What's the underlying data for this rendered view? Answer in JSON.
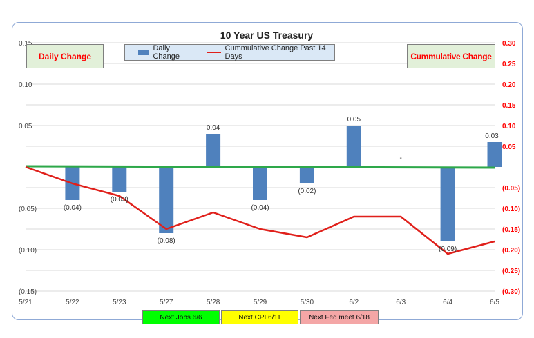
{
  "chart_data": {
    "type": "bar+line",
    "title": "10 Year US Treasury",
    "categories": [
      "5/21",
      "5/22",
      "5/23",
      "5/27",
      "5/28",
      "5/29",
      "5/30",
      "6/2",
      "6/3",
      "6/4",
      "6/5"
    ],
    "series": [
      {
        "name": "Daily Change",
        "type": "bar",
        "axis": "left",
        "color": "#4f81bd",
        "values": [
          0,
          -0.04,
          -0.03,
          -0.08,
          0.04,
          -0.04,
          -0.02,
          0.05,
          0,
          -0.09,
          0.03
        ],
        "labels": [
          "",
          "(0.04)",
          "(0.03)",
          "(0.08)",
          "0.04",
          "(0.04)",
          "(0.02)",
          "0.05",
          "-",
          "(0.09)",
          "0.03"
        ]
      },
      {
        "name": "Cummulative Change Past 14 Days",
        "type": "line",
        "axis": "right",
        "color": "#e0201b",
        "values": [
          0,
          -0.04,
          -0.07,
          -0.15,
          -0.11,
          -0.15,
          -0.17,
          -0.12,
          -0.12,
          -0.21,
          -0.18
        ]
      }
    ],
    "y_left": {
      "ylim": [
        -0.15,
        0.15
      ],
      "ticks": [
        0.15,
        0.1,
        0.05,
        -0.05,
        -0.1,
        -0.15
      ],
      "tick_labels": [
        "0.15",
        "0.10",
        "0.05",
        "(0.05)",
        "(0.10)",
        "(0.15)"
      ]
    },
    "y_right": {
      "ylim": [
        -0.3,
        0.3
      ],
      "color": "#ff0000",
      "ticks": [
        0.3,
        0.25,
        0.2,
        0.15,
        0.1,
        0.05,
        -0.05,
        -0.1,
        -0.15,
        -0.2,
        -0.25,
        -0.3
      ],
      "tick_labels": [
        "0.30",
        "0.25",
        "0.20",
        "0.15",
        "0.10",
        "0.05",
        "(0.05)",
        "(0.10)",
        "(0.15)",
        "(0.20)",
        "(0.25)",
        "(0.30)"
      ]
    },
    "zero_line_color": "#2ea84a",
    "grid": true,
    "legend_placement": "top-center"
  },
  "badges": {
    "daily": "Daily Change",
    "cumulative": "Cummulative Change"
  },
  "legend": {
    "bar_label": "Daily Change",
    "line_label": "Cummulative Change Past 14 Days"
  },
  "events": [
    {
      "label": "Next Jobs 6/6",
      "color": "#00ff00"
    },
    {
      "label": "Next CPI 6/11",
      "color": "#ffff00"
    },
    {
      "label": "Next Fed meet 6/18",
      "color": "#f4a6a6"
    }
  ]
}
